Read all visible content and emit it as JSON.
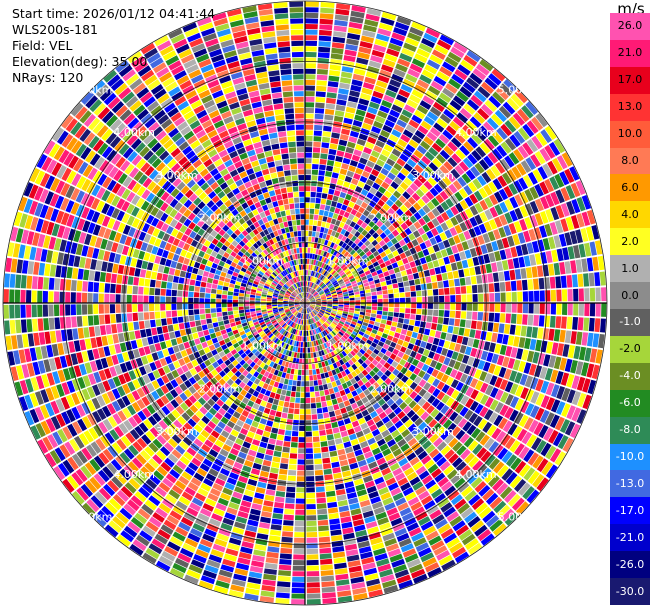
{
  "info": {
    "start_time": "Start time: 2026/01/12 04:41:44",
    "instrument": "WLS200s-181",
    "field": "Field: VEL",
    "elevation": "Elevation(deg): 35.00",
    "nrays": "NRays: 120"
  },
  "colorbar": {
    "unit": "m/s",
    "entries": [
      {
        "label": "26.0",
        "color": "#ff52b0"
      },
      {
        "label": "21.0",
        "color": "#ff1a75"
      },
      {
        "label": "17.0",
        "color": "#e8001c"
      },
      {
        "label": "13.0",
        "color": "#ff3333"
      },
      {
        "label": "10.0",
        "color": "#ff5c3a"
      },
      {
        "label": "8.0",
        "color": "#ff7a55"
      },
      {
        "label": "6.0",
        "color": "#ff9900"
      },
      {
        "label": "4.0",
        "color": "#ffd700"
      },
      {
        "label": "2.0",
        "color": "#ffff22"
      },
      {
        "label": "1.0",
        "color": "#b0b0b0"
      },
      {
        "label": "0.0",
        "color": "#8c8c8c"
      },
      {
        "label": "-1.0",
        "color": "#606060"
      },
      {
        "label": "-2.0",
        "color": "#a6d63a"
      },
      {
        "label": "-4.0",
        "color": "#6b8e23"
      },
      {
        "label": "-6.0",
        "color": "#228b22"
      },
      {
        "label": "-8.0",
        "color": "#2e8b57"
      },
      {
        "label": "-10.0",
        "color": "#1e90ff"
      },
      {
        "label": "-13.0",
        "color": "#4169e1"
      },
      {
        "label": "-17.0",
        "color": "#0000ff"
      },
      {
        "label": "-21.0",
        "color": "#0000cd"
      },
      {
        "label": "-26.0",
        "color": "#000080"
      },
      {
        "label": "-30.0",
        "color": "#191970"
      }
    ]
  },
  "chart_data": {
    "type": "heatmap",
    "projection": "polar PPI",
    "field": "VEL",
    "units": "m/s",
    "nrays": 120,
    "range_rings_km": [
      1.0,
      2.0,
      3.0,
      4.0,
      5.0
    ],
    "range_ring_labels": [
      "1.00km",
      "2.00km",
      "3.00km",
      "4.00km",
      "5.00km"
    ],
    "max_range_km": 5.0,
    "value_range": [
      -30.0,
      26.0
    ]
  }
}
